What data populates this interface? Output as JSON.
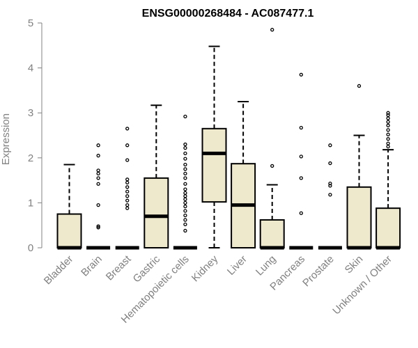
{
  "chart_data": {
    "type": "boxplot",
    "title": "ENSG00000268484 - AC087477.1",
    "xlabel": "",
    "ylabel": "Expression",
    "ylim": [
      0,
      5
    ],
    "yticks": [
      "0",
      "1",
      "2",
      "3",
      "4",
      "5"
    ],
    "grid": false,
    "box_color": "#EEE8CD",
    "categories": [
      "Bladder",
      "Brain",
      "Breast",
      "Gastric",
      "Hematopoietic cells",
      "Kidney",
      "Liver",
      "Lung",
      "Pancreas",
      "Prostate",
      "Skin",
      "Unknown / Other"
    ],
    "boxes": [
      {
        "whisker_low": 0,
        "q1": 0,
        "median": 0,
        "q3": 0.75,
        "whisker_high": 1.85,
        "outliers": []
      },
      {
        "whisker_low": 0,
        "q1": 0,
        "median": 0,
        "q3": 0,
        "whisker_high": 0,
        "outliers": [
          0.45,
          0.48,
          0.95,
          1.42,
          1.55,
          1.65,
          1.72,
          2.05,
          2.28
        ]
      },
      {
        "whisker_low": 0,
        "q1": 0,
        "median": 0,
        "q3": 0,
        "whisker_high": 0,
        "outliers": [
          0.88,
          0.95,
          1.05,
          1.15,
          1.25,
          1.35,
          1.45,
          1.52,
          1.95,
          2.28,
          2.65
        ]
      },
      {
        "whisker_low": 0,
        "q1": 0,
        "median": 0.7,
        "q3": 1.55,
        "whisker_high": 3.17,
        "outliers": []
      },
      {
        "whisker_low": 0,
        "q1": 0,
        "median": 0,
        "q3": 0,
        "whisker_high": 0,
        "outliers": [
          0.38,
          0.52,
          0.62,
          0.72,
          0.82,
          0.92,
          1.0,
          1.08,
          1.15,
          1.22,
          1.3,
          1.42,
          1.55,
          1.65,
          1.75,
          1.85,
          1.98,
          2.1,
          2.22,
          2.3,
          2.92
        ]
      },
      {
        "whisker_low": 0,
        "q1": 1.02,
        "median": 2.1,
        "q3": 2.65,
        "whisker_high": 4.48,
        "outliers": []
      },
      {
        "whisker_low": 0,
        "q1": 0,
        "median": 0.95,
        "q3": 1.87,
        "whisker_high": 3.25,
        "outliers": []
      },
      {
        "whisker_low": 0,
        "q1": 0,
        "median": 0,
        "q3": 0.62,
        "whisker_high": 1.4,
        "outliers": [
          1.82,
          4.85
        ]
      },
      {
        "whisker_low": 0,
        "q1": 0,
        "median": 0,
        "q3": 0,
        "whisker_high": 0,
        "outliers": [
          0.77,
          1.55,
          2.03,
          2.67,
          3.85
        ]
      },
      {
        "whisker_low": 0,
        "q1": 0,
        "median": 0,
        "q3": 0,
        "whisker_high": 0,
        "outliers": [
          1.18,
          1.38,
          1.43,
          1.88,
          2.28
        ]
      },
      {
        "whisker_low": 0,
        "q1": 0,
        "median": 0,
        "q3": 1.35,
        "whisker_high": 2.5,
        "outliers": [
          3.6
        ]
      },
      {
        "whisker_low": 0,
        "q1": 0,
        "median": 0,
        "q3": 0.88,
        "whisker_high": 2.18,
        "outliers": [
          2.25,
          2.32,
          2.42,
          2.52,
          2.62,
          2.72,
          2.8,
          2.88,
          2.95,
          3.0
        ]
      }
    ]
  }
}
